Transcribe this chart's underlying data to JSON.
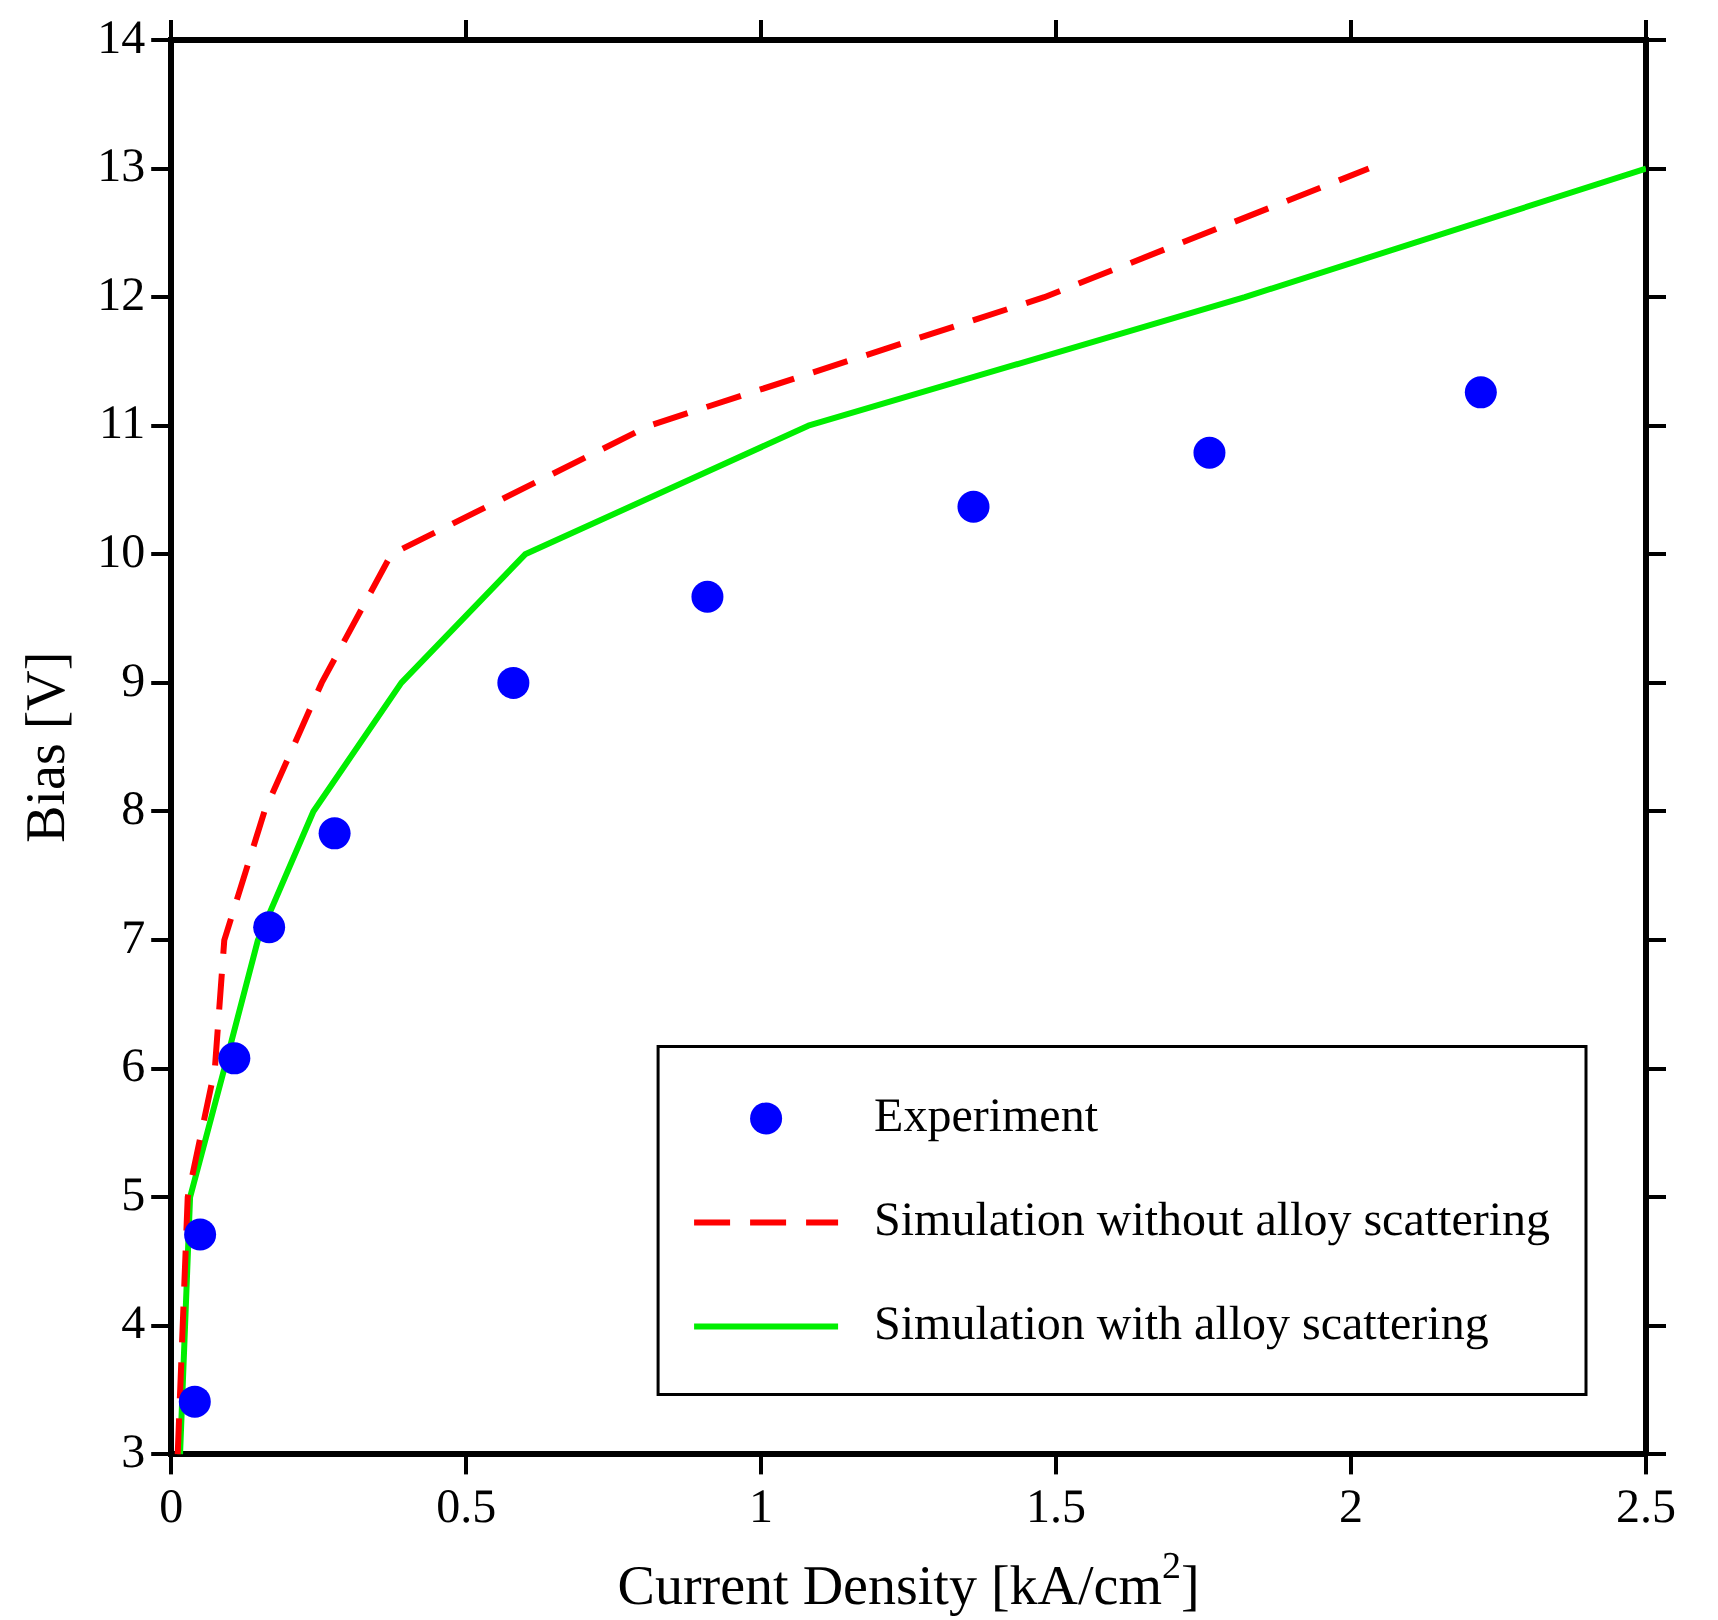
{
  "chart_data": {
    "type": "line",
    "xlabel": "Current Density [kA/cm$^{2}$]",
    "ylabel": "Bias [V]",
    "xlim": [
      0,
      2.5
    ],
    "xticks": [
      0,
      0.5,
      1,
      1.5,
      2,
      2.5
    ],
    "ylim": [
      3,
      14
    ],
    "yticks": [
      3,
      4,
      5,
      6,
      7,
      8,
      9,
      10,
      11,
      12,
      13,
      14
    ],
    "grid": false,
    "legend": "bottom right",
    "series": [
      {
        "name": "Experiment",
        "type": "scatter",
        "marker": "circle",
        "color": "#0000ff",
        "x": [
          0.04,
          0.049,
          0.107,
          0.166,
          0.277,
          0.58,
          0.909,
          1.36,
          1.76,
          2.22
        ],
        "values": [
          3.41,
          4.71,
          6.08,
          7.1,
          7.83,
          9.0,
          9.67,
          10.37,
          10.79,
          11.26
        ]
      },
      {
        "name": "Simulation without alloy scattering",
        "type": "line",
        "line_style": "dashed",
        "marker": "none",
        "color": "#ff0000",
        "x": [
          0.011,
          0.028,
          0.074,
          0.09,
          0.158,
          0.255,
          0.373,
          0.81,
          1.48,
          2.03
        ],
        "values": [
          3,
          5,
          6,
          7,
          8,
          9,
          10,
          11,
          12,
          13
        ]
      },
      {
        "name": "Simulation with alloy scattering",
        "type": "line",
        "line_style": "solid",
        "marker": "none",
        "color": "#00ee00",
        "x": [
          0.015,
          0.032,
          0.09,
          0.147,
          0.241,
          0.39,
          0.6,
          1.08,
          1.82,
          2.5
        ],
        "values": [
          3,
          5,
          6,
          7,
          8,
          9,
          10,
          11,
          12,
          13
        ]
      }
    ]
  }
}
